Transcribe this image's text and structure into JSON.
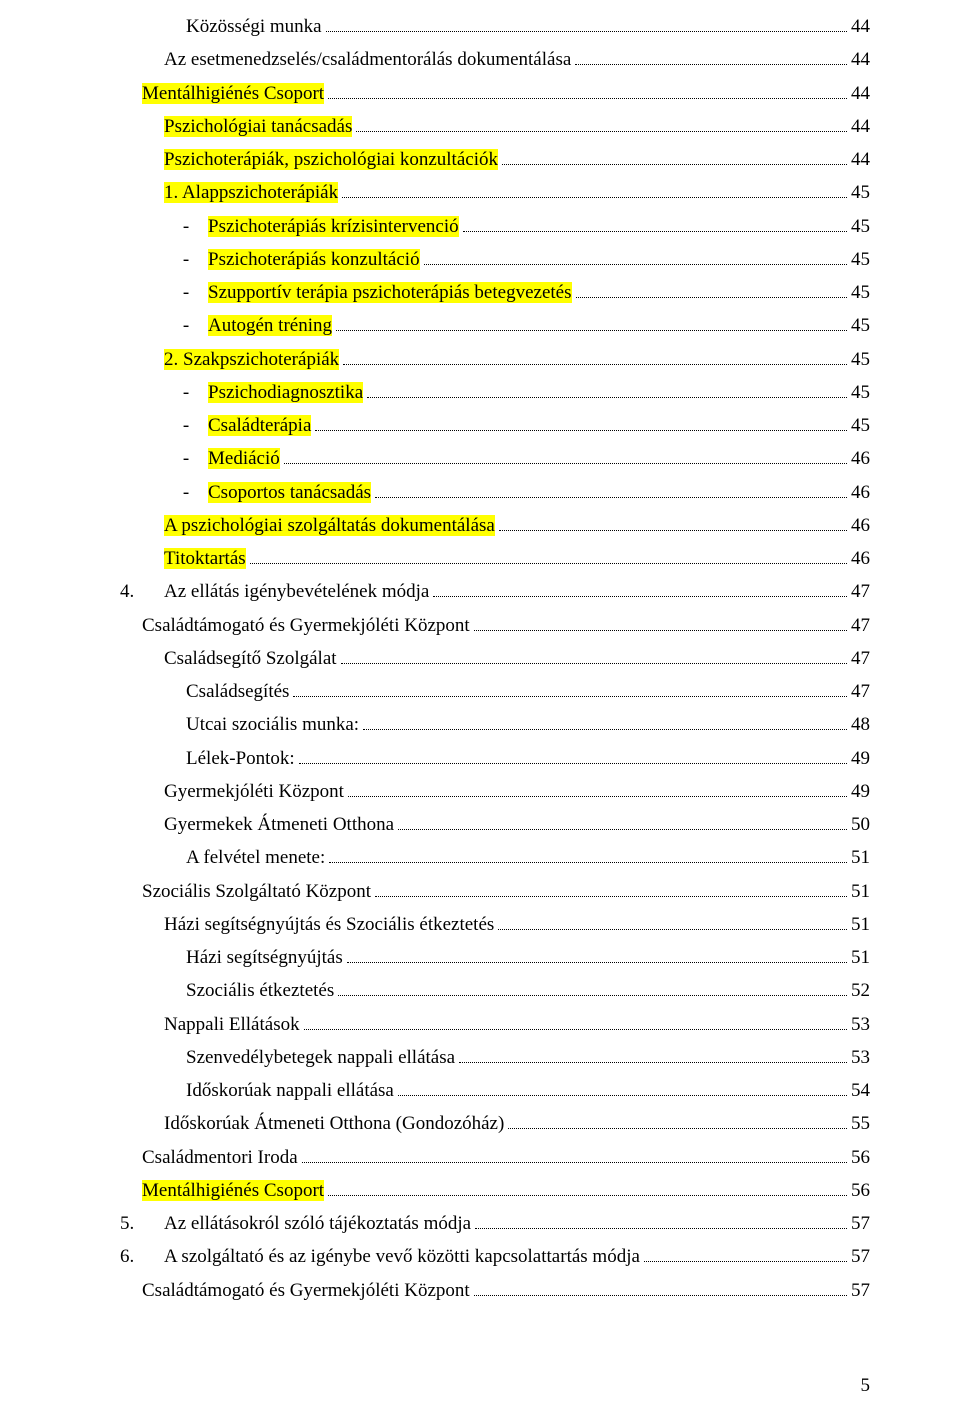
{
  "typography": {
    "font_family": "Times New Roman",
    "base_fontsize_pt": 14,
    "line_height": 1.75,
    "text_color": "#000000",
    "background_color": "#ffffff",
    "highlight_color": "#ffff00",
    "dot_leader_color": "#000000"
  },
  "page_number": "5",
  "toc": [
    {
      "label": "Közösségi munka",
      "page": "44",
      "indent": 3,
      "highlight": false
    },
    {
      "label": "Az esetmenedzselés/családmentorálás dokumentálása",
      "page": "44",
      "indent": 2,
      "highlight": false
    },
    {
      "label": "Mentálhigiénés Csoport",
      "page": "44",
      "indent": 1,
      "highlight": true
    },
    {
      "label": "Pszichológiai tanácsadás",
      "page": "44",
      "indent": 2,
      "highlight": true
    },
    {
      "label": "Pszichoterápiák, pszichológiai konzultációk",
      "page": "44",
      "indent": 2,
      "highlight": true
    },
    {
      "label": "1. Alappszichoterápiák",
      "page": "45",
      "indent": 2,
      "highlight": true
    },
    {
      "dash": true,
      "label": "Pszichoterápiás krízisintervenció",
      "page": "45",
      "indent": 2,
      "highlight": true
    },
    {
      "dash": true,
      "label": "Pszichoterápiás konzultáció",
      "page": "45",
      "indent": 2,
      "highlight": true
    },
    {
      "dash": true,
      "label": "Szupportív terápia pszichoterápiás betegvezetés",
      "page": "45",
      "indent": 2,
      "highlight": true
    },
    {
      "dash": true,
      "label": "Autogén tréning",
      "page": "45",
      "indent": 2,
      "highlight": true
    },
    {
      "label": "2. Szakpszichoterápiák",
      "page": "45",
      "indent": 2,
      "highlight": true
    },
    {
      "dash": true,
      "label": "Pszichodiagnosztika",
      "page": "45",
      "indent": 2,
      "highlight": true
    },
    {
      "dash": true,
      "label": "Családterápia",
      "page": "45",
      "indent": 2,
      "highlight": true
    },
    {
      "dash": true,
      "label": "Mediáció",
      "page": "46",
      "indent": 2,
      "highlight": true
    },
    {
      "dash": true,
      "label": "Csoportos tanácsadás",
      "page": "46",
      "indent": 2,
      "highlight": true
    },
    {
      "label": "A pszichológiai szolgáltatás dokumentálása",
      "page": "46",
      "indent": 2,
      "highlight": true
    },
    {
      "label": "Titoktartás",
      "page": "46",
      "indent": 2,
      "highlight": true
    },
    {
      "num": "4.",
      "label": "Az ellátás igénybevételének módja",
      "page": "47",
      "indent": 0,
      "highlight": false
    },
    {
      "label": "Családtámogató és Gyermekjóléti Központ",
      "page": "47",
      "indent": 1,
      "highlight": false
    },
    {
      "label": "Családsegítő Szolgálat",
      "page": "47",
      "indent": 2,
      "highlight": false
    },
    {
      "label": "Családsegítés",
      "page": "47",
      "indent": 3,
      "highlight": false
    },
    {
      "label": "Utcai szociális munka:",
      "page": "48",
      "indent": 3,
      "highlight": false
    },
    {
      "label": "Lélek-Pontok:",
      "page": "49",
      "indent": 3,
      "highlight": false
    },
    {
      "label": "Gyermekjóléti Központ",
      "page": "49",
      "indent": 2,
      "highlight": false
    },
    {
      "label": "Gyermekek Átmeneti Otthona",
      "page": "50",
      "indent": 2,
      "highlight": false
    },
    {
      "label": "A felvétel menete:",
      "page": "51",
      "indent": 3,
      "highlight": false
    },
    {
      "label": "Szociális Szolgáltató Központ",
      "page": "51",
      "indent": 1,
      "highlight": false
    },
    {
      "label": "Házi segítségnyújtás és Szociális étkeztetés",
      "page": "51",
      "indent": 2,
      "highlight": false
    },
    {
      "label": "Házi segítségnyújtás",
      "page": "51",
      "indent": 3,
      "highlight": false
    },
    {
      "label": "Szociális étkeztetés",
      "page": "52",
      "indent": 3,
      "highlight": false
    },
    {
      "label": "Nappali Ellátások",
      "page": "53",
      "indent": 2,
      "highlight": false
    },
    {
      "label": "Szenvedélybetegek nappali ellátása",
      "page": "53",
      "indent": 3,
      "highlight": false
    },
    {
      "label": "Időskorúak nappali ellátása",
      "page": "54",
      "indent": 3,
      "highlight": false
    },
    {
      "label": "Időskorúak Átmeneti Otthona (Gondozóház)",
      "page": "55",
      "indent": 2,
      "highlight": false
    },
    {
      "label": "Családmentori Iroda",
      "page": "56",
      "indent": 1,
      "highlight": false
    },
    {
      "label": "Mentálhigiénés Csoport",
      "page": "56",
      "indent": 1,
      "highlight": true
    },
    {
      "num": "5.",
      "label": "Az ellátásokról szóló tájékoztatás módja",
      "page": "57",
      "indent": 0,
      "highlight": false
    },
    {
      "num": "6.",
      "label": "A szolgáltató és az igénybe vevő közötti kapcsolattartás módja",
      "page": "57",
      "indent": 0,
      "highlight": false
    },
    {
      "label": "Családtámogató és Gyermekjóléti Központ",
      "page": "57",
      "indent": 1,
      "highlight": false
    }
  ]
}
